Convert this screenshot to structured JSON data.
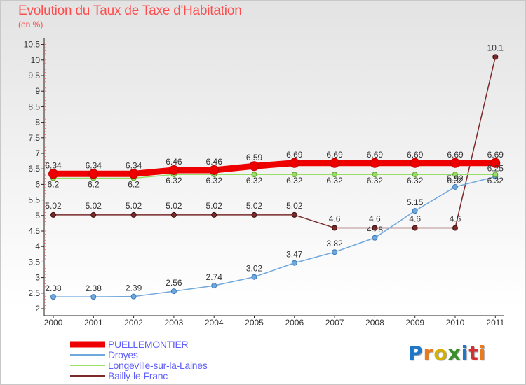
{
  "chart_data": {
    "type": "line",
    "title": "Evolution du Taux de Taxe d'Habitation",
    "unit_label": "(en %)",
    "categories": [
      "2000",
      "2001",
      "2002",
      "2003",
      "2004",
      "2005",
      "2006",
      "2007",
      "2008",
      "2009",
      "2010",
      "2011"
    ],
    "ylim": [
      2,
      10.5
    ],
    "yticks": [
      "2",
      "2.5",
      "3",
      "3.5",
      "4",
      "4.5",
      "5",
      "5.5",
      "6",
      "6.5",
      "7",
      "7.5",
      "8",
      "8.5",
      "9",
      "9.5",
      "10",
      "10.5"
    ],
    "grid": false,
    "legend_position": "bottom-left",
    "series": [
      {
        "name": "PUELLEMONTIER",
        "color": "#ee0000",
        "values": [
          6.34,
          6.34,
          6.34,
          6.46,
          6.46,
          6.59,
          6.69,
          6.69,
          6.69,
          6.69,
          6.69,
          6.69
        ],
        "labels": [
          "6.34",
          "6.34",
          "6.34",
          "6.46",
          "6.46",
          "6.59",
          "6.69",
          "6.69",
          "6.69",
          "6.69",
          "6.69",
          "6.69"
        ]
      },
      {
        "name": "Droyes",
        "color": "#6fa8dc",
        "values": [
          2.38,
          2.38,
          2.39,
          2.56,
          2.74,
          3.02,
          3.47,
          3.82,
          4.28,
          5.15,
          5.92,
          6.25
        ],
        "labels": [
          "2.38",
          "2.38",
          "2.39",
          "2.56",
          "2.74",
          "3.02",
          "3.47",
          "3.82",
          "4.28",
          "5.15",
          "5.92",
          "6.25"
        ]
      },
      {
        "name": "Longeville-sur-la-Laines",
        "color": "#99dd66",
        "values": [
          6.2,
          6.2,
          6.2,
          6.32,
          6.32,
          6.32,
          6.32,
          6.32,
          6.32,
          6.32,
          6.32,
          6.32
        ],
        "labels": [
          "6.2",
          "6.2",
          "6.2",
          "6.32",
          "6.32",
          "6.32",
          "6.32",
          "6.32",
          "6.32",
          "6.32",
          "6.32",
          "6.32"
        ]
      },
      {
        "name": "Bailly-le-Franc",
        "color": "#7a2a2a",
        "values": [
          5.02,
          5.02,
          5.02,
          5.02,
          5.02,
          5.02,
          5.02,
          4.6,
          4.6,
          4.6,
          4.6,
          10.1
        ],
        "labels": [
          "5.02",
          "5.02",
          "5.02",
          "5.02",
          "5.02",
          "5.02",
          "5.02",
          "4.6",
          "4.6",
          "4.6",
          "4.6",
          "10.1"
        ]
      }
    ]
  },
  "logo": {
    "letters": [
      "P",
      "r",
      "o",
      "x",
      "i",
      "t",
      "i"
    ],
    "colors": [
      "#1f77c9",
      "#e87b1e",
      "#d4b000",
      "#3a8f2a",
      "#1f77c9",
      "#d62f2f",
      "#e87b1e"
    ]
  }
}
